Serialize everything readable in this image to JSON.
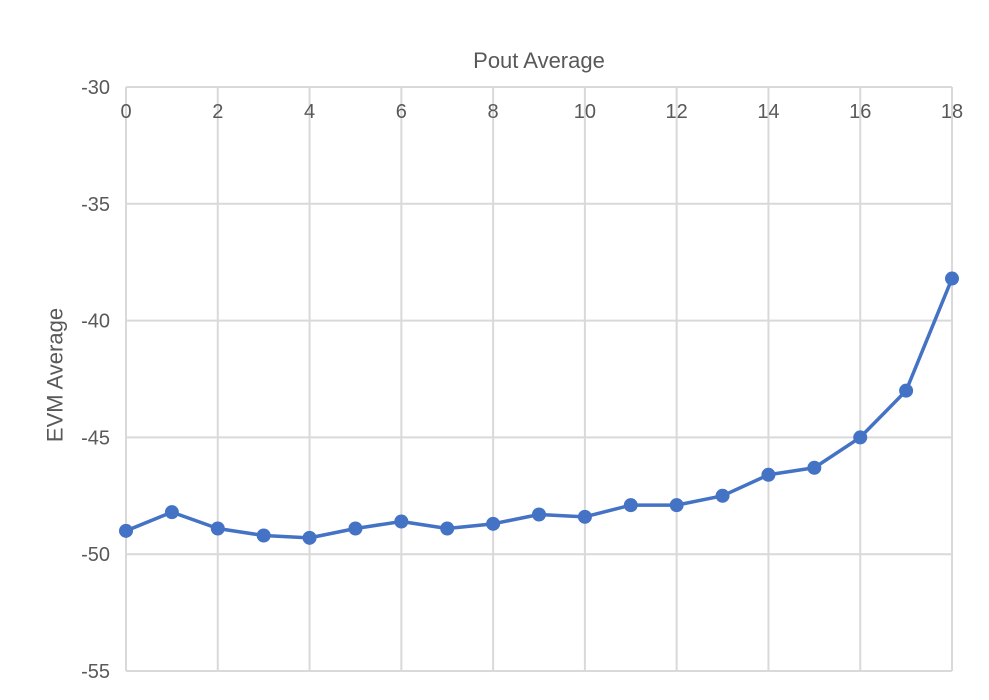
{
  "chart_data": {
    "type": "line",
    "xlabel": "Pout Average",
    "ylabel": "EVM Average",
    "x_axis_position": "top",
    "xlim": [
      0,
      18
    ],
    "ylim": [
      -55,
      -30
    ],
    "x_ticks": [
      "0",
      "2",
      "4",
      "6",
      "8",
      "10",
      "12",
      "14",
      "16",
      "18"
    ],
    "y_ticks": [
      "-30",
      "-35",
      "-40",
      "-45",
      "-50",
      "-55"
    ],
    "grid": true,
    "series": [
      {
        "color": "#4472C4",
        "marker": "circle",
        "x": [
          0,
          1,
          2,
          3,
          4,
          5,
          6,
          7,
          8,
          9,
          10,
          11,
          12,
          13,
          14,
          15,
          16,
          17,
          18
        ],
        "y": [
          -49.0,
          -48.2,
          -48.9,
          -49.2,
          -49.3,
          -48.9,
          -48.6,
          -48.9,
          -48.7,
          -48.3,
          -48.4,
          -47.9,
          -47.9,
          -47.5,
          -46.6,
          -46.3,
          -45.0,
          -43.0,
          -38.2
        ]
      }
    ]
  }
}
